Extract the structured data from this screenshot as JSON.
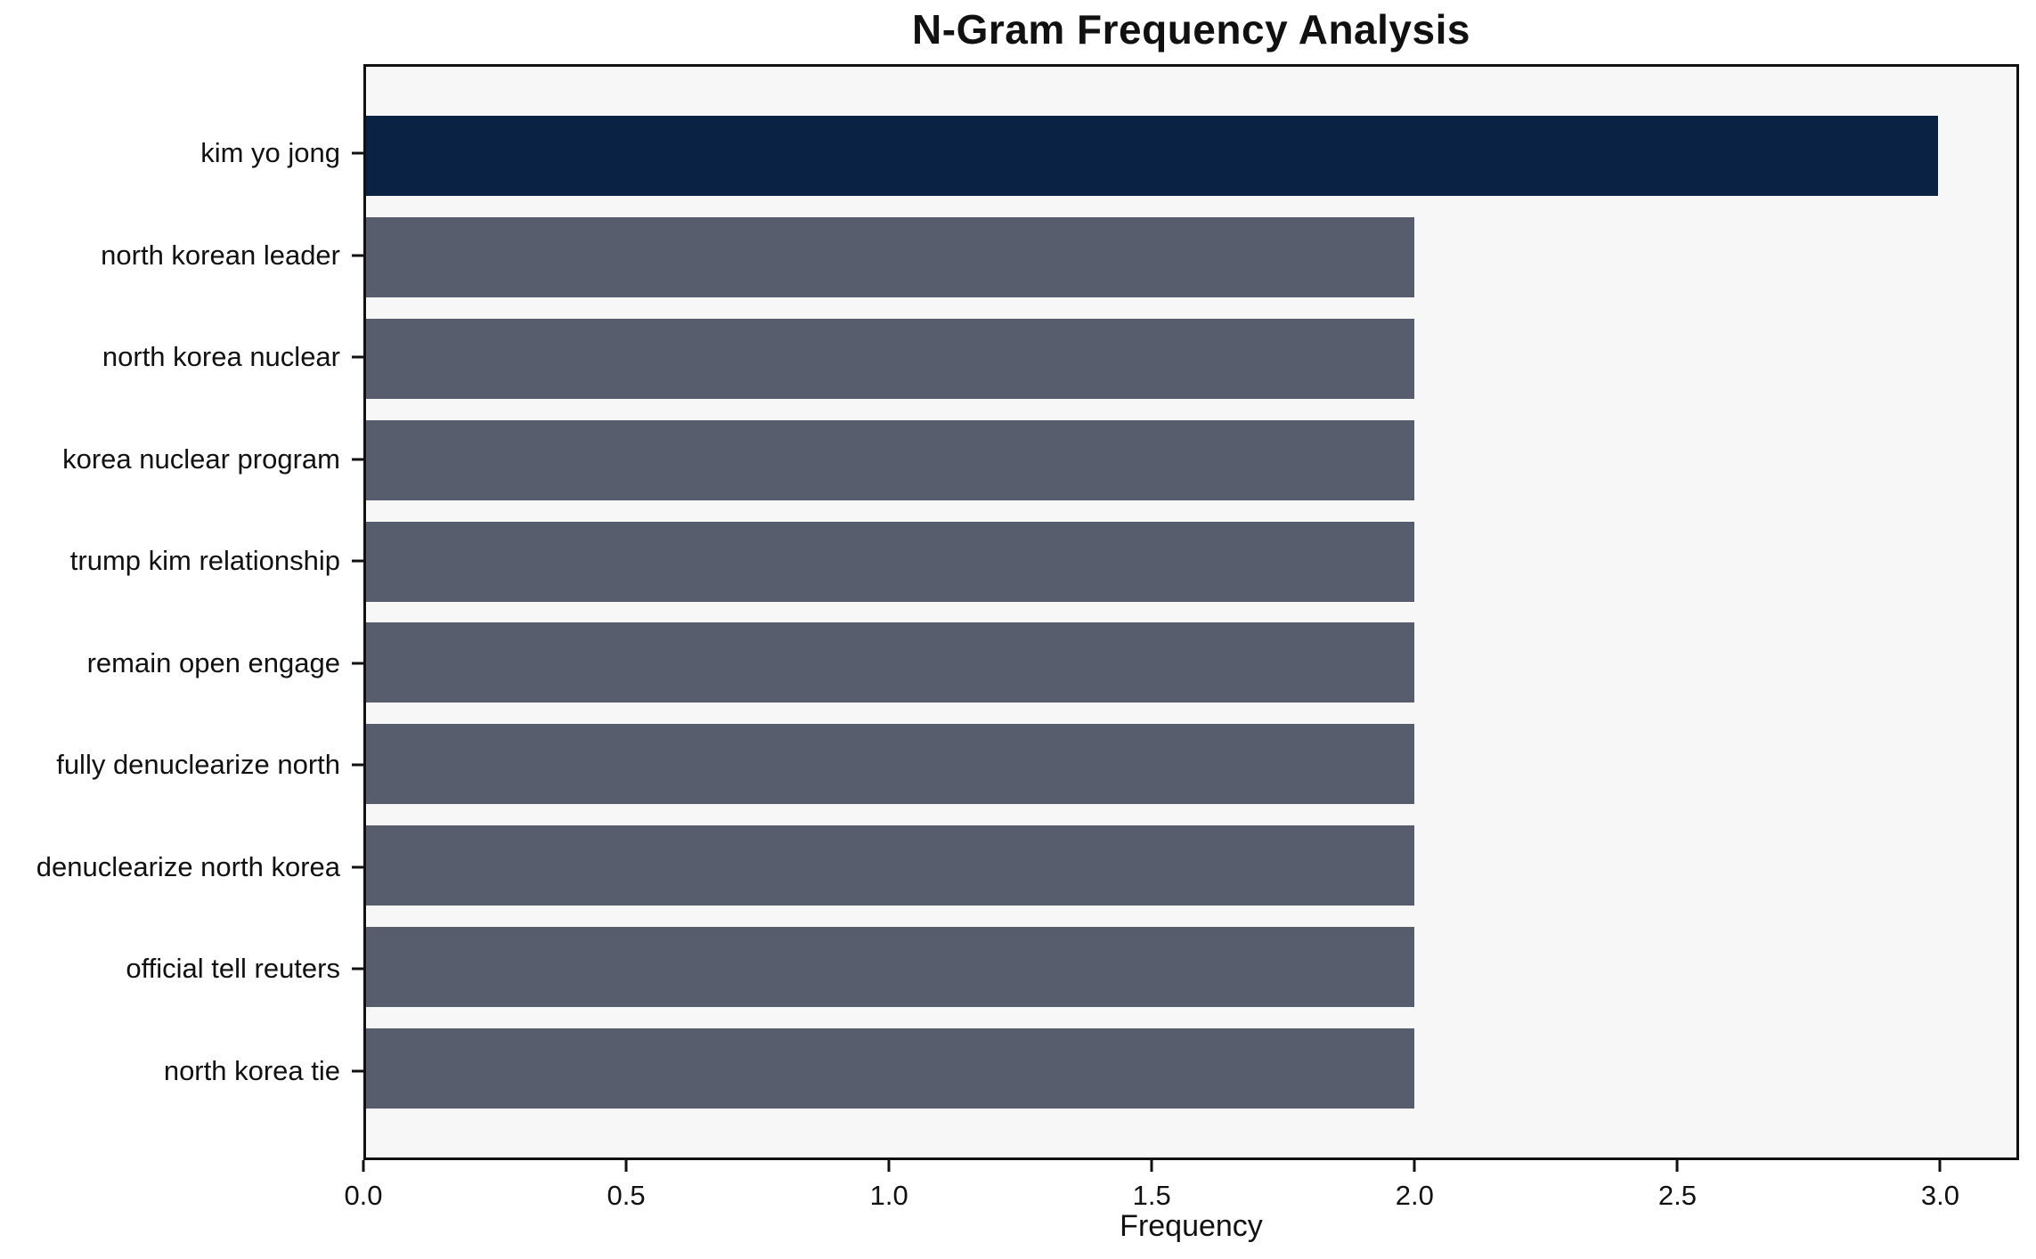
{
  "chart_data": {
    "type": "bar",
    "orientation": "horizontal",
    "title": "N-Gram Frequency Analysis",
    "categories": [
      "kim yo jong",
      "north korean leader",
      "north korea nuclear",
      "korea nuclear program",
      "trump kim relationship",
      "remain open engage",
      "fully denuclearize north",
      "denuclearize north korea",
      "official tell reuters",
      "north korea tie"
    ],
    "values": [
      3,
      2,
      2,
      2,
      2,
      2,
      2,
      2,
      2,
      2
    ],
    "xlabel": "Frequency",
    "xticks": [
      0.0,
      0.5,
      1.0,
      1.5,
      2.0,
      2.5,
      3.0
    ],
    "xtick_labels": [
      "0.0",
      "0.5",
      "1.0",
      "1.5",
      "2.0",
      "2.5",
      "3.0"
    ],
    "xlim": [
      0,
      3.15
    ],
    "highlight_index": 0,
    "colors": {
      "highlight": "#0a2345",
      "default": "#575d6d",
      "plot_background": "#f7f7f8",
      "figure_background": "#ffffff",
      "spine": "#111111"
    },
    "grid": false,
    "legend": "none"
  }
}
